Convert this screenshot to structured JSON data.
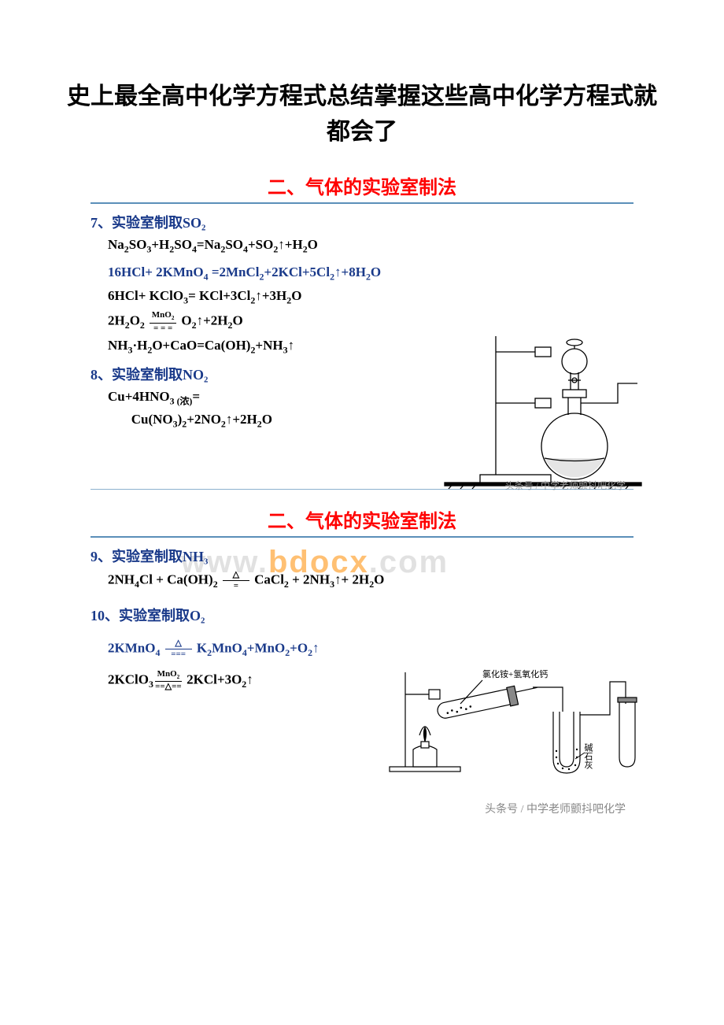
{
  "title": "史上最全高中化学方程式总结掌握这些高中化学方程式就都会了",
  "watermark": {
    "left": "www.",
    "mid": "bdocx",
    "right": ".com"
  },
  "colors": {
    "section_header": "#ff0000",
    "rule": "#5b8fb9",
    "item_head": "#1a3a8a",
    "eq_default": "#000000",
    "eq_accent": "#1a3a8a",
    "credit": "#888888"
  },
  "section1": {
    "header": "二、气体的实验室制法",
    "items": [
      {
        "head": "7、实验室制取SO₂",
        "equations": [
          {
            "html": "Na<sub>2</sub>SO<sub>3</sub>+H<sub>2</sub>SO<sub>4</sub>=Na<sub>2</sub>SO<sub>4</sub>+SO<sub>2</sub>↑+H<sub>2</sub>O",
            "cls": ""
          },
          {
            "html": "16HCl+ 2KMnO<sub>4</sub> =2MnCl<sub>2</sub>+2KCl+5Cl<sub>2</sub>↑+8H<sub>2</sub>O",
            "cls": "blue"
          },
          {
            "html": "6HCl+ KClO<sub>3</sub>= KCl+3Cl<sub>2</sub>↑+3H<sub>2</sub>O",
            "cls": ""
          },
          {
            "html": "2H<sub>2</sub>O<sub>2</sub> <span class=\"cond\"><span class=\"top\">MnO<sub class=\"subn\">2</sub></span><span class=\"bot\">= = =</span></span> O<sub>2</sub>↑+2H<sub>2</sub>O",
            "cls": ""
          },
          {
            "html": "NH<sub>3</sub>·H<sub>2</sub>O+CaO=Ca(OH)<sub>2</sub>+NH<sub>3</sub>↑",
            "cls": ""
          }
        ]
      },
      {
        "head": "8、实验室制取NO₂",
        "equations": [
          {
            "html": "Cu+4HNO<sub>3 (浓)</sub>=",
            "cls": ""
          },
          {
            "html": "&nbsp;&nbsp;&nbsp;&nbsp;&nbsp;&nbsp;&nbsp;Cu(NO<sub>3</sub>)<sub>2</sub>+2NO<sub>2</sub>↑+2H<sub>2</sub>O",
            "cls": ""
          }
        ]
      }
    ],
    "credit": "头条号 / 中学老师颤抖吧化学"
  },
  "section2": {
    "header": "二、气体的实验室制法",
    "items": [
      {
        "head": "9、实验室制取NH₃",
        "equations": [
          {
            "html": "2NH<sub>4</sub>Cl + Ca(OH)<sub>2</sub> <span class=\"cond\"><span class=\"top tri\"></span><span class=\"bot\">=</span></span> CaCl<sub>2</sub> + 2NH<sub>3</sub>↑+ 2H<sub>2</sub>O",
            "cls": ""
          }
        ]
      },
      {
        "head": "10、实验室制取O₂",
        "equations": [
          {
            "html": "2KMnO<sub>4</sub> <span class=\"cond\"><span class=\"top tri\"></span><span class=\"bot\">===</span></span> K<sub>2</sub>MnO<sub>4</sub>+MnO<sub>2</sub>+O<sub>2</sub>↑",
            "cls": "blue"
          },
          {
            "html": "2KClO<sub>3</sub><span class=\"cond\"><span class=\"top\">MnO<sub class=\"subn\">2</sub></span><span class=\"bot\">==<span class=\"tri\"></span>==</span></span> 2KCl+3O<sub>2</sub>↑",
            "cls": ""
          }
        ]
      }
    ],
    "diagram_labels": {
      "reagent": "氯化铵+氢氧化钙",
      "drying": "碱石灰"
    },
    "credit": "头条号 / 中学老师颤抖吧化学"
  }
}
